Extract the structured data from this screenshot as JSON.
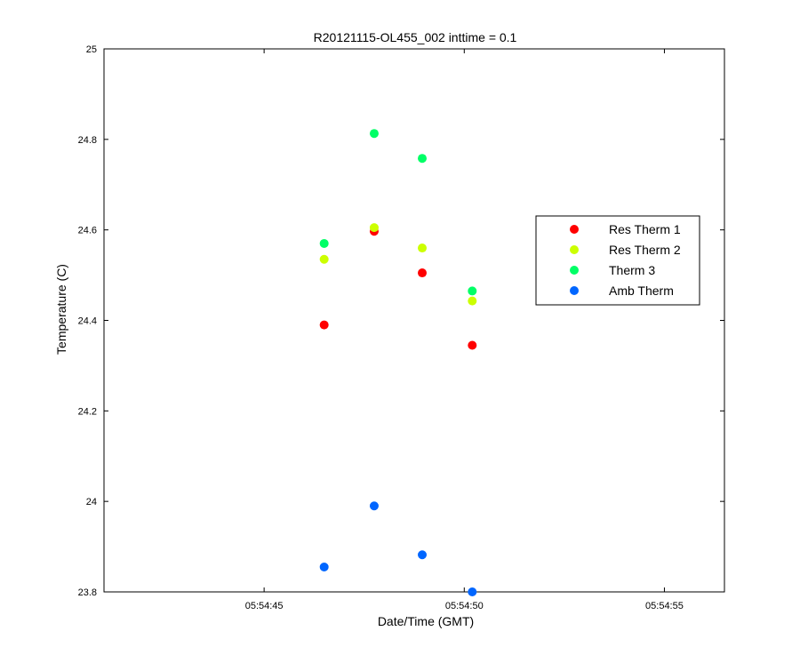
{
  "chart_data": {
    "type": "scatter",
    "title": "R20121115-OL455_002 inttime = 0.1",
    "xlabel": "Date/Time (GMT)",
    "ylabel": "Temperature (C)",
    "x_axis_format": "time",
    "xlim": [
      "05:54:41",
      "05:54:56.5"
    ],
    "ylim": [
      23.8,
      25.0
    ],
    "x_ticks": [
      "05:54:45",
      "05:54:50",
      "05:54:55"
    ],
    "y_ticks": [
      "23.8",
      "24",
      "24.2",
      "24.4",
      "24.6",
      "24.8",
      "25"
    ],
    "grid": false,
    "legend_position": "right",
    "x": [
      "05:54:46.5",
      "05:54:47.75",
      "05:54:48.95",
      "05:54:50.2"
    ],
    "series": [
      {
        "name": "Res Therm 1",
        "color": "#ff0000",
        "values": [
          24.39,
          24.597,
          24.505,
          24.345
        ]
      },
      {
        "name": "Res Therm 2",
        "color": "#ccff00",
        "values": [
          24.535,
          24.605,
          24.56,
          24.443
        ]
      },
      {
        "name": "Therm 3",
        "color": "#00ff66",
        "values": [
          24.57,
          24.813,
          24.758,
          24.465
        ]
      },
      {
        "name": "Amb Therm",
        "color": "#0066ff",
        "values": [
          23.855,
          23.99,
          23.882,
          23.8
        ]
      }
    ]
  }
}
